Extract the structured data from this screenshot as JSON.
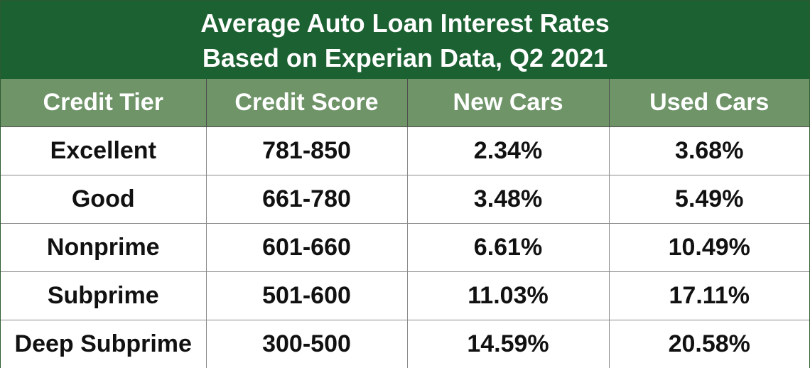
{
  "chart_data": {
    "type": "table",
    "title": "Average Auto Loan Interest Rates",
    "subtitle": "Based on Experian Data, Q2 2021",
    "columns": [
      "Credit Tier",
      "Credit Score",
      "New Cars",
      "Used Cars"
    ],
    "rows": [
      [
        "Excellent",
        "781-850",
        "2.34%",
        "3.68%"
      ],
      [
        "Good",
        "661-780",
        "3.48%",
        "5.49%"
      ],
      [
        "Nonprime",
        "601-660",
        "6.61%",
        "10.49%"
      ],
      [
        "Subprime",
        "501-600",
        "11.03%",
        "17.11%"
      ],
      [
        "Deep Subprime",
        "300-500",
        "14.59%",
        "20.58%"
      ]
    ],
    "colors": {
      "title_background": "#1c6132",
      "header_background": "#6e9468",
      "header_text": "#ffffff",
      "cell_text": "#111111"
    }
  }
}
